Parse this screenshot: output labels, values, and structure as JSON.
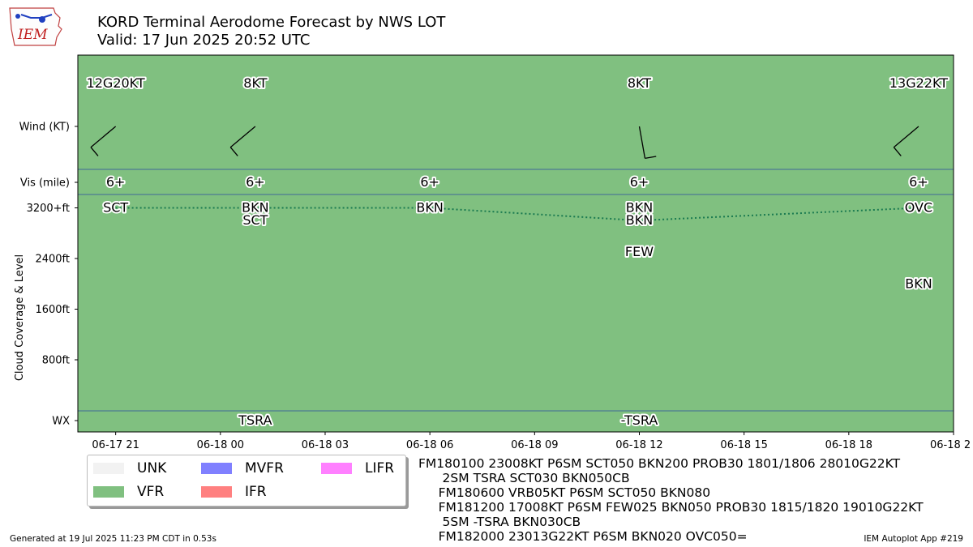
{
  "title": {
    "line1": "KORD Terminal Aerodome Forecast by NWS LOT",
    "line2": "Valid: 17 Jun 2025 20:52 UTC"
  },
  "logo": {
    "text": "IEM"
  },
  "chart_data": {
    "type": "timeline",
    "x_range": [
      "2025-06-17 19:55",
      "2025-06-18 21:00"
    ],
    "x_ticks": [
      "06-17 21",
      "06-18 00",
      "06-18 03",
      "06-18 06",
      "06-18 09",
      "06-18 12",
      "06-18 15",
      "06-18 18",
      "06-18 2"
    ],
    "y_ticks": [
      "WX",
      "800ft",
      "1600ft",
      "2400ft",
      "3200+ft",
      "Vis (mile)",
      "Wind (KT)"
    ],
    "ylabel": "Cloud Coverage & Level",
    "ylim_ft": [
      -600,
      3200
    ],
    "background_category": "VFR",
    "wind": [
      {
        "time": "2025-06-17 21:00",
        "label": "12G20KT",
        "dir_deg": 230
      },
      {
        "time": "2025-06-18 01:00",
        "label": "8KT",
        "dir_deg": 230
      },
      {
        "time": "2025-06-18 12:00",
        "label": "8KT",
        "dir_deg": 170
      },
      {
        "time": "2025-06-18 20:00",
        "label": "13G22KT",
        "dir_deg": 230
      }
    ],
    "visibility": [
      {
        "time": "2025-06-17 21:00",
        "label": "6+"
      },
      {
        "time": "2025-06-18 01:00",
        "label": "6+"
      },
      {
        "time": "2025-06-18 06:00",
        "label": "6+"
      },
      {
        "time": "2025-06-18 12:00",
        "label": "6+"
      },
      {
        "time": "2025-06-18 20:00",
        "label": "6+"
      }
    ],
    "clouds": [
      {
        "time": "2025-06-17 21:00",
        "cover": "SCT",
        "level_ft": 3200
      },
      {
        "time": "2025-06-18 01:00",
        "cover": "BKN",
        "level_ft": 3200
      },
      {
        "time": "2025-06-18 01:00",
        "cover": "SCT",
        "level_ft": 3000
      },
      {
        "time": "2025-06-18 06:00",
        "cover": "BKN",
        "level_ft": 3200
      },
      {
        "time": "2025-06-18 12:00",
        "cover": "BKN",
        "level_ft": 3200
      },
      {
        "time": "2025-06-18 12:00",
        "cover": "BKN",
        "level_ft": 3000
      },
      {
        "time": "2025-06-18 12:00",
        "cover": "FEW",
        "level_ft": 2500
      },
      {
        "time": "2025-06-18 20:00",
        "cover": "OVC",
        "level_ft": 3200
      },
      {
        "time": "2025-06-18 20:00",
        "cover": "BKN",
        "level_ft": 2000
      }
    ],
    "ceiling_line": [
      {
        "time": "2025-06-17 21:00",
        "level_ft": 3200
      },
      {
        "time": "2025-06-18 01:00",
        "level_ft": 3200
      },
      {
        "time": "2025-06-18 06:00",
        "level_ft": 3200
      },
      {
        "time": "2025-06-18 12:00",
        "level_ft": 3000
      },
      {
        "time": "2025-06-18 20:00",
        "level_ft": 3200
      }
    ],
    "wx": [
      {
        "time": "2025-06-18 01:00",
        "label": "TSRA"
      },
      {
        "time": "2025-06-18 12:00",
        "label": "-TSRA"
      }
    ]
  },
  "legend": [
    {
      "label": "UNK",
      "color": "#f2f2f2"
    },
    {
      "label": "VFR",
      "color": "#80c080"
    },
    {
      "label": "MVFR",
      "color": "#8080ff"
    },
    {
      "label": "IFR",
      "color": "#ff8080"
    },
    {
      "label": "LIFR",
      "color": "#ff80ff"
    }
  ],
  "taf_text": [
    "FM180100 23008KT P6SM SCT050 BKN200 PROB30 1801/1806 28010G22KT",
    "      2SM TSRA SCT030 BKN050CB",
    "     FM180600 VRB05KT P6SM SCT050 BKN080",
    "     FM181200 17008KT P6SM FEW025 BKN050 PROB30 1815/1820 19010G22KT",
    "      5SM -TSRA BKN030CB",
    "     FM182000 23013G22KT P6SM BKN020 OVC050="
  ],
  "footer": {
    "left": "Generated at 19 Jul 2025 11:23 PM CDT in 0.53s",
    "right": "IEM Autoplot App #219"
  }
}
